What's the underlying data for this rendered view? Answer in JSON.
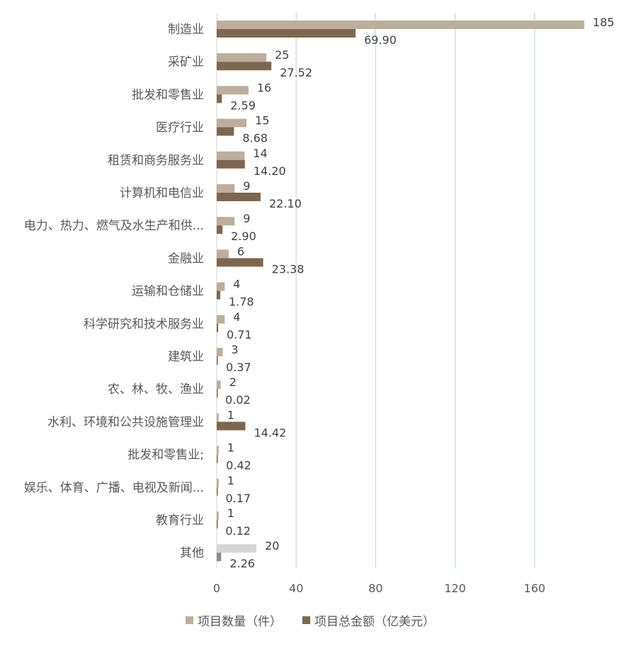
{
  "chart_data": {
    "type": "bar",
    "orientation": "horizontal",
    "categories": [
      "制造业",
      "采矿业",
      "批发和零售业",
      "医疗行业",
      "租赁和商务服务业",
      "计算机和电信业",
      "电力、热力、燃气及水生产和供...",
      "金融业",
      "运输和仓储业",
      "科学研究和技术服务业",
      "建筑业",
      "农、林、牧、渔业",
      "水利、环境和公共设施管理业",
      "批发和零售业;",
      "娱乐、体育、广播、电视及新闻...",
      "教育行业",
      "其他"
    ],
    "series": [
      {
        "name": "项目数量（件）",
        "color": "#bcae9a",
        "values": [
          185,
          25,
          16,
          15,
          14,
          9,
          9,
          6,
          4,
          4,
          3,
          2,
          1,
          1,
          1,
          1,
          20
        ],
        "labels": [
          "185",
          "25",
          "16",
          "15",
          "14",
          "9",
          "9",
          "6",
          "4",
          "4",
          "3",
          "2",
          "1",
          "1",
          "1",
          "1",
          "20"
        ]
      },
      {
        "name": "项目总金额（亿美元）",
        "color": "#7e674e",
        "values": [
          69.9,
          27.52,
          2.59,
          8.68,
          14.2,
          22.1,
          2.9,
          23.38,
          1.78,
          0.71,
          0.37,
          0.02,
          14.42,
          0.42,
          0.17,
          0.12,
          2.26
        ],
        "labels": [
          "69.90",
          "27.52",
          "2.59",
          "8.68",
          "14.20",
          "22.10",
          "2.90",
          "23.38",
          "1.78",
          "0.71",
          "0.37",
          "0.02",
          "14.42",
          "0.42",
          "0.17",
          "0.12",
          "2.26"
        ]
      }
    ],
    "highlight": {
      "category_index": 16,
      "colors": [
        "#d6d6d6",
        "#8c8c8c"
      ]
    },
    "xlim": [
      0,
      185
    ],
    "xticks": [
      "0",
      "40",
      "80",
      "120",
      "160"
    ],
    "xtick_values": [
      0,
      40,
      80,
      120,
      160
    ],
    "grid": "vertical",
    "legend": "bottom"
  }
}
